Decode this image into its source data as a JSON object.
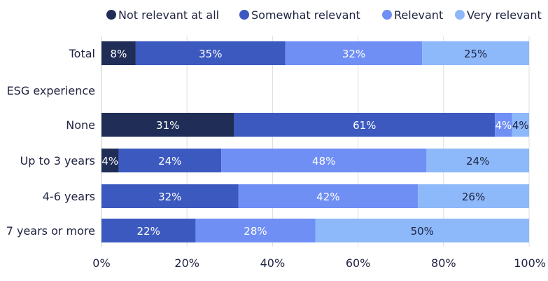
{
  "chart_data": {
    "type": "bar",
    "orientation": "horizontal",
    "stacked": true,
    "title": "",
    "xlabel": "",
    "ylabel": "",
    "xlim": [
      0,
      100
    ],
    "grid": true,
    "legend_position": "top",
    "categories": [
      "Total",
      "ESG experience",
      "None",
      "Up to 3 years",
      "4-6 years",
      "7 years or more"
    ],
    "x_ticks": [
      "0%",
      "20%",
      "40%",
      "60%",
      "80%",
      "100%"
    ],
    "series": [
      {
        "name": "Not relevant at all",
        "color": "#1f2d57",
        "values": [
          8,
          null,
          31,
          4,
          null,
          null
        ]
      },
      {
        "name": "Somewhat relevant",
        "color": "#3c59c0",
        "values": [
          35,
          null,
          61,
          24,
          32,
          22
        ]
      },
      {
        "name": "Relevant",
        "color": "#6f8ff5",
        "values": [
          32,
          null,
          4,
          48,
          42,
          28
        ]
      },
      {
        "name": "Very relevant",
        "color": "#8db8fa",
        "values": [
          25,
          null,
          4,
          24,
          26,
          50
        ]
      }
    ],
    "bar_labels": [
      [
        "8%",
        "35%",
        "32%",
        "25%"
      ],
      [
        null,
        null,
        null,
        null
      ],
      [
        "31%",
        "61%",
        "4%",
        "4%"
      ],
      [
        "4%",
        "24%",
        "48%",
        "24%"
      ],
      [
        null,
        "32%",
        "42%",
        "26%"
      ],
      [
        null,
        "22%",
        "28%",
        "50%"
      ]
    ],
    "label_colors": [
      "#ffffff",
      "#ffffff",
      "#ffffff",
      "#1f2340"
    ]
  }
}
